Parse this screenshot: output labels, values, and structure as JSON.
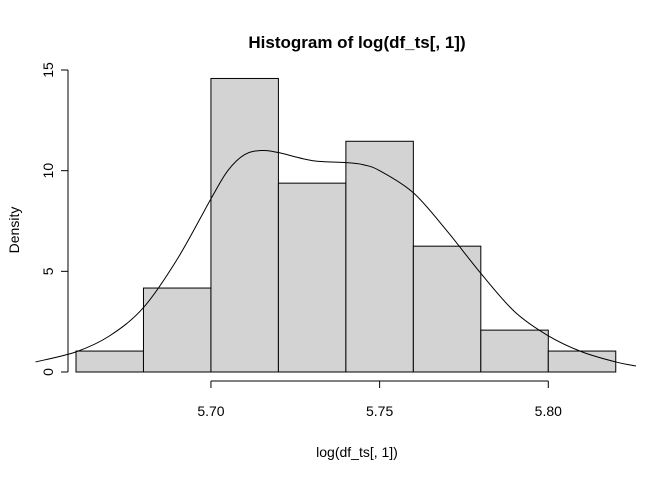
{
  "chart_data": {
    "type": "histogram",
    "title": "Histogram of log(df_ts[, 1])",
    "xlabel": "log(df_ts[, 1])",
    "ylabel": "Density",
    "xlim": [
      5.66,
      5.826
    ],
    "ylim": [
      0,
      15
    ],
    "x_ticks": [
      5.7,
      5.75,
      5.8
    ],
    "x_tick_labels": [
      "5.70",
      "5.75",
      "5.80"
    ],
    "y_ticks": [
      0,
      5,
      10,
      15
    ],
    "y_tick_labels": [
      "0",
      "5",
      "10",
      "15"
    ],
    "bins": [
      {
        "x0": 5.66,
        "x1": 5.68,
        "density": 1.04
      },
      {
        "x0": 5.68,
        "x1": 5.7,
        "density": 4.17
      },
      {
        "x0": 5.7,
        "x1": 5.72,
        "density": 14.58
      },
      {
        "x0": 5.72,
        "x1": 5.74,
        "density": 9.38
      },
      {
        "x0": 5.74,
        "x1": 5.76,
        "density": 11.46
      },
      {
        "x0": 5.76,
        "x1": 5.78,
        "density": 6.25
      },
      {
        "x0": 5.78,
        "x1": 5.8,
        "density": 2.08
      },
      {
        "x0": 5.8,
        "x1": 5.82,
        "density": 1.04
      }
    ],
    "density_curve": {
      "x": [
        5.648,
        5.66,
        5.67,
        5.68,
        5.69,
        5.7,
        5.705,
        5.71,
        5.715,
        5.72,
        5.73,
        5.74,
        5.745,
        5.75,
        5.76,
        5.77,
        5.78,
        5.79,
        5.8,
        5.81,
        5.82,
        5.826
      ],
      "y": [
        0.5,
        1.0,
        1.8,
        3.2,
        5.6,
        8.6,
        10.0,
        10.8,
        11.0,
        10.9,
        10.5,
        10.4,
        10.3,
        10.0,
        8.9,
        7.0,
        4.9,
        3.0,
        1.8,
        1.0,
        0.5,
        0.3
      ]
    },
    "grid": false,
    "legend": "none"
  }
}
